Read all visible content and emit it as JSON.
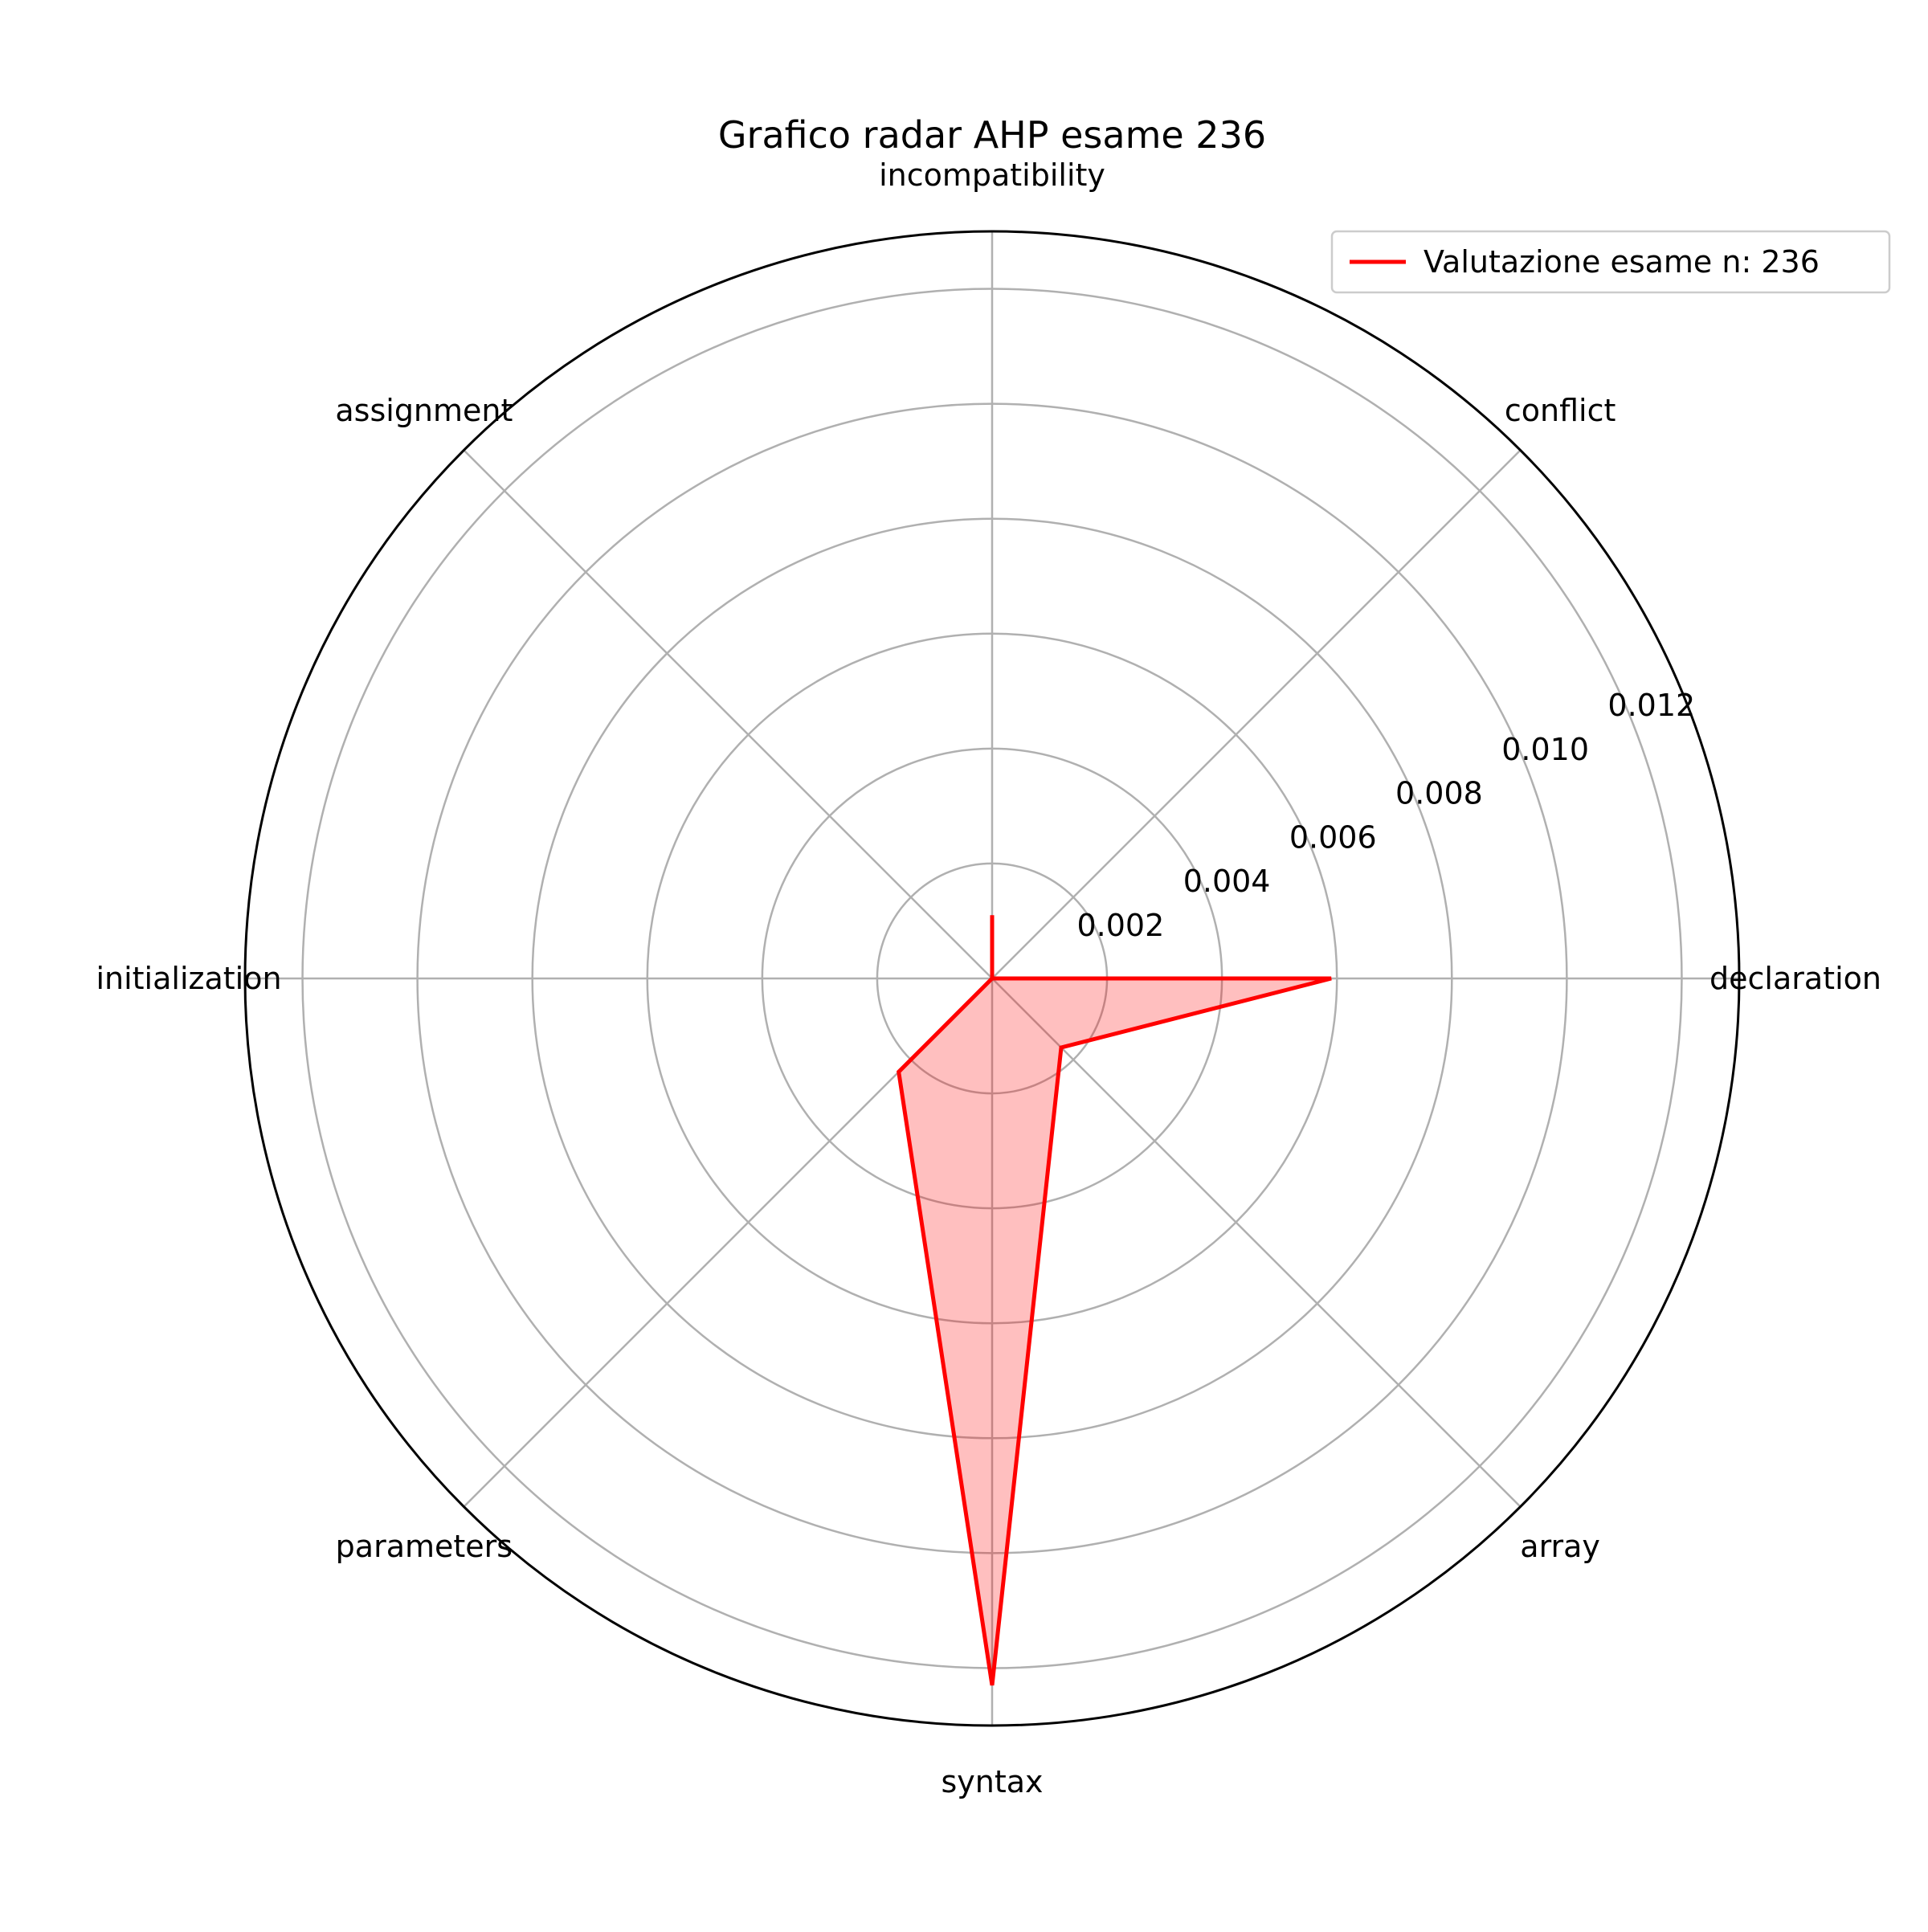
{
  "chart_data": {
    "type": "radar",
    "title": "Grafico radar AHP esame 236",
    "categories": [
      "declaration",
      "conflict",
      "incompatibility",
      "assignment",
      "initialization",
      "parameters",
      "syntax",
      "array"
    ],
    "series": [
      {
        "name": "Valutazione esame n: 236",
        "values": [
          0.0059,
          0.0,
          0.0011,
          0.0,
          0.0,
          0.0023,
          0.0123,
          0.0017
        ],
        "color": "#ff0000",
        "fill": "#ff0000",
        "fill_opacity": 0.25
      }
    ],
    "rlim": [
      0,
      0.013
    ],
    "rticks": [
      0.002,
      0.004,
      0.006,
      0.008,
      0.01,
      0.012
    ],
    "rtick_labels": [
      "0.002",
      "0.004",
      "0.006",
      "0.008",
      "0.010",
      "0.012"
    ],
    "grid": true,
    "legend_position": "top-right"
  }
}
